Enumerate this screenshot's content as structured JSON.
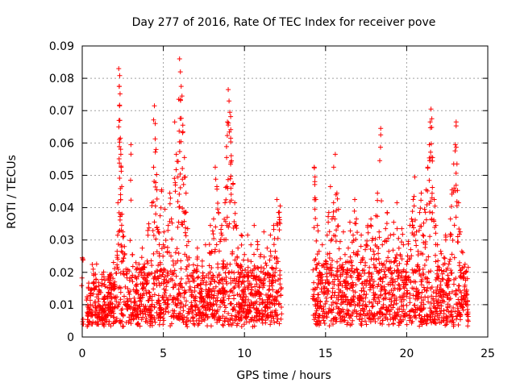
{
  "chart_data": {
    "type": "scatter",
    "title": "Day 277 of 2016, Rate Of TEC Index for receiver pove",
    "xlabel": "GPS time / hours",
    "ylabel": "ROTI / TECUs",
    "xlim": [
      0,
      25
    ],
    "ylim": [
      0,
      0.09
    ],
    "x_ticks": [
      0,
      5,
      10,
      15,
      20,
      25
    ],
    "x_tick_labels": [
      "0",
      "5",
      "10",
      "15",
      "20",
      "25"
    ],
    "y_ticks": [
      0,
      0.01,
      0.02,
      0.03,
      0.04,
      0.05,
      0.06,
      0.07,
      0.08,
      0.09
    ],
    "y_tick_labels": [
      "0",
      "0.01",
      "0.02",
      "0.03",
      "0.04",
      "0.05",
      "0.06",
      "0.07",
      "0.08",
      "0.09"
    ],
    "grid": true,
    "marker": "+",
    "marker_color": "#ff0000",
    "series": [
      {
        "name": "ROTI",
        "points": [
          [
            0.0,
            0.0245
          ],
          [
            0.05,
            0.0055
          ],
          [
            0.3,
            0.0125
          ],
          [
            0.4,
            0.009
          ],
          [
            0.5,
            0.0145
          ],
          [
            0.6,
            0.007
          ],
          [
            0.7,
            0.0195
          ],
          [
            0.8,
            0.011
          ],
          [
            0.9,
            0.0075
          ],
          [
            1.0,
            0.0135
          ],
          [
            1.1,
            0.0095
          ],
          [
            1.2,
            0.016
          ],
          [
            1.3,
            0.0085
          ],
          [
            1.4,
            0.0125
          ],
          [
            1.5,
            0.0065
          ],
          [
            1.6,
            0.018
          ],
          [
            1.7,
            0.01
          ],
          [
            1.8,
            0.0145
          ],
          [
            1.9,
            0.008
          ],
          [
            2.0,
            0.017
          ],
          [
            2.1,
            0.011
          ],
          [
            2.15,
            0.0265
          ],
          [
            2.2,
            0.0415
          ],
          [
            2.25,
            0.083
          ],
          [
            2.28,
            0.0775
          ],
          [
            2.3,
            0.0715
          ],
          [
            2.32,
            0.067
          ],
          [
            2.35,
            0.0615
          ],
          [
            2.38,
            0.0565
          ],
          [
            2.4,
            0.0525
          ],
          [
            2.45,
            0.038
          ],
          [
            2.5,
            0.0325
          ],
          [
            2.6,
            0.028
          ],
          [
            2.7,
            0.021
          ],
          [
            2.8,
            0.015
          ],
          [
            2.9,
            0.0095
          ],
          [
            3.0,
            0.0595
          ],
          [
            3.1,
            0.0255
          ],
          [
            3.2,
            0.012
          ],
          [
            3.3,
            0.0185
          ],
          [
            3.4,
            0.0085
          ],
          [
            3.5,
            0.0225
          ],
          [
            3.6,
            0.013
          ],
          [
            3.7,
            0.0275
          ],
          [
            3.8,
            0.0155
          ],
          [
            3.9,
            0.0095
          ],
          [
            4.0,
            0.0235
          ],
          [
            4.1,
            0.035
          ],
          [
            4.2,
            0.0125
          ],
          [
            4.3,
            0.0415
          ],
          [
            4.4,
            0.0525
          ],
          [
            4.45,
            0.0715
          ],
          [
            4.5,
            0.066
          ],
          [
            4.55,
            0.058
          ],
          [
            4.6,
            0.0455
          ],
          [
            4.7,
            0.0325
          ],
          [
            4.8,
            0.0375
          ],
          [
            4.9,
            0.0455
          ],
          [
            5.0,
            0.0285
          ],
          [
            5.1,
            0.0395
          ],
          [
            5.2,
            0.0175
          ],
          [
            5.3,
            0.0345
          ],
          [
            5.4,
            0.0445
          ],
          [
            5.5,
            0.0365
          ],
          [
            5.6,
            0.0235
          ],
          [
            5.7,
            0.0665
          ],
          [
            5.8,
            0.0565
          ],
          [
            5.9,
            0.0495
          ],
          [
            5.95,
            0.0735
          ],
          [
            6.0,
            0.086
          ],
          [
            6.05,
            0.082
          ],
          [
            6.1,
            0.0775
          ],
          [
            6.15,
            0.0745
          ],
          [
            6.2,
            0.0655
          ],
          [
            6.3,
            0.0555
          ],
          [
            6.35,
            0.0495
          ],
          [
            6.4,
            0.0445
          ],
          [
            6.5,
            0.0335
          ],
          [
            6.6,
            0.0245
          ],
          [
            6.7,
            0.0145
          ],
          [
            6.8,
            0.0095
          ],
          [
            6.9,
            0.0205
          ],
          [
            7.0,
            0.0125
          ],
          [
            7.1,
            0.0275
          ],
          [
            7.2,
            0.0085
          ],
          [
            7.3,
            0.0165
          ],
          [
            7.4,
            0.0235
          ],
          [
            7.5,
            0.0115
          ],
          [
            7.6,
            0.0285
          ],
          [
            7.7,
            0.0135
          ],
          [
            7.8,
            0.0195
          ],
          [
            7.9,
            0.0345
          ],
          [
            8.0,
            0.0265
          ],
          [
            8.1,
            0.0365
          ],
          [
            8.2,
            0.0525
          ],
          [
            8.3,
            0.0465
          ],
          [
            8.4,
            0.0385
          ],
          [
            8.5,
            0.0295
          ],
          [
            8.6,
            0.0345
          ],
          [
            8.7,
            0.0235
          ],
          [
            8.8,
            0.0415
          ],
          [
            8.9,
            0.0555
          ],
          [
            8.95,
            0.0665
          ],
          [
            9.0,
            0.0765
          ],
          [
            9.05,
            0.073
          ],
          [
            9.1,
            0.0695
          ],
          [
            9.15,
            0.0615
          ],
          [
            9.2,
            0.0545
          ],
          [
            9.3,
            0.0475
          ],
          [
            9.4,
            0.0415
          ],
          [
            9.5,
            0.0345
          ],
          [
            9.6,
            0.0275
          ],
          [
            9.7,
            0.0215
          ],
          [
            9.8,
            0.0315
          ],
          [
            9.9,
            0.0185
          ],
          [
            10.0,
            0.0255
          ],
          [
            10.1,
            0.0125
          ],
          [
            10.2,
            0.0315
          ],
          [
            10.3,
            0.0165
          ],
          [
            10.4,
            0.0285
          ],
          [
            10.5,
            0.0205
          ],
          [
            10.6,
            0.0345
          ],
          [
            10.7,
            0.0135
          ],
          [
            10.8,
            0.0295
          ],
          [
            10.9,
            0.0185
          ],
          [
            11.0,
            0.0255
          ],
          [
            11.1,
            0.0115
          ],
          [
            11.2,
            0.0325
          ],
          [
            11.3,
            0.0195
          ],
          [
            11.4,
            0.0275
          ],
          [
            11.5,
            0.0145
          ],
          [
            11.6,
            0.0315
          ],
          [
            11.7,
            0.0215
          ],
          [
            11.8,
            0.0345
          ],
          [
            11.9,
            0.0265
          ],
          [
            12.0,
            0.0425
          ],
          [
            12.1,
            0.0385
          ],
          [
            12.2,
            0.0405
          ],
          [
            14.3,
            0.0525
          ],
          [
            14.35,
            0.0495
          ],
          [
            14.4,
            0.0425
          ],
          [
            14.5,
            0.0345
          ],
          [
            14.6,
            0.0265
          ],
          [
            14.7,
            0.0195
          ],
          [
            14.8,
            0.0285
          ],
          [
            14.9,
            0.0155
          ],
          [
            15.0,
            0.0235
          ],
          [
            15.1,
            0.0315
          ],
          [
            15.2,
            0.0385
          ],
          [
            15.3,
            0.0465
          ],
          [
            15.4,
            0.0365
          ],
          [
            15.5,
            0.0525
          ],
          [
            15.6,
            0.0565
          ],
          [
            15.7,
            0.0445
          ],
          [
            15.8,
            0.0395
          ],
          [
            15.9,
            0.0295
          ],
          [
            16.0,
            0.0215
          ],
          [
            16.1,
            0.0325
          ],
          [
            16.2,
            0.0255
          ],
          [
            16.3,
            0.0185
          ],
          [
            16.4,
            0.0275
          ],
          [
            16.5,
            0.0355
          ],
          [
            16.6,
            0.0235
          ],
          [
            16.7,
            0.0315
          ],
          [
            16.8,
            0.0425
          ],
          [
            16.9,
            0.0365
          ],
          [
            17.0,
            0.0265
          ],
          [
            17.1,
            0.0195
          ],
          [
            17.2,
            0.0315
          ],
          [
            17.3,
            0.0245
          ],
          [
            17.4,
            0.0165
          ],
          [
            17.5,
            0.0285
          ],
          [
            17.6,
            0.0345
          ],
          [
            17.7,
            0.0215
          ],
          [
            17.8,
            0.0365
          ],
          [
            17.9,
            0.0305
          ],
          [
            18.0,
            0.0255
          ],
          [
            18.1,
            0.0375
          ],
          [
            18.2,
            0.0445
          ],
          [
            18.3,
            0.0325
          ],
          [
            18.4,
            0.0645
          ],
          [
            18.5,
            0.0285
          ],
          [
            18.6,
            0.0225
          ],
          [
            18.7,
            0.0335
          ],
          [
            18.8,
            0.0385
          ],
          [
            18.9,
            0.0265
          ],
          [
            19.0,
            0.0315
          ],
          [
            19.1,
            0.0195
          ],
          [
            19.2,
            0.0355
          ],
          [
            19.3,
            0.0245
          ],
          [
            19.4,
            0.0415
          ],
          [
            19.5,
            0.0305
          ],
          [
            19.6,
            0.0255
          ],
          [
            19.7,
            0.0335
          ],
          [
            19.8,
            0.0285
          ],
          [
            19.9,
            0.0185
          ],
          [
            20.0,
            0.0225
          ],
          [
            20.1,
            0.0295
          ],
          [
            20.2,
            0.0345
          ],
          [
            20.3,
            0.0365
          ],
          [
            20.4,
            0.0425
          ],
          [
            20.5,
            0.0495
          ],
          [
            20.6,
            0.0325
          ],
          [
            20.7,
            0.0265
          ],
          [
            20.8,
            0.0385
          ],
          [
            20.9,
            0.0445
          ],
          [
            21.0,
            0.0315
          ],
          [
            21.1,
            0.0395
          ],
          [
            21.2,
            0.0455
          ],
          [
            21.3,
            0.0525
          ],
          [
            21.4,
            0.0595
          ],
          [
            21.45,
            0.0665
          ],
          [
            21.5,
            0.0705
          ],
          [
            21.55,
            0.0675
          ],
          [
            21.6,
            0.0555
          ],
          [
            21.7,
            0.0425
          ],
          [
            21.8,
            0.0345
          ],
          [
            21.9,
            0.0285
          ],
          [
            22.0,
            0.0215
          ],
          [
            22.1,
            0.0265
          ],
          [
            22.2,
            0.0195
          ],
          [
            22.3,
            0.0245
          ],
          [
            22.4,
            0.0315
          ],
          [
            22.5,
            0.0175
          ],
          [
            22.6,
            0.0225
          ],
          [
            22.7,
            0.0365
          ],
          [
            22.8,
            0.0455
          ],
          [
            22.9,
            0.0535
          ],
          [
            23.0,
            0.0595
          ],
          [
            23.05,
            0.0665
          ],
          [
            23.1,
            0.0535
          ],
          [
            23.2,
            0.0415
          ],
          [
            23.3,
            0.0325
          ],
          [
            23.4,
            0.0265
          ],
          [
            23.5,
            0.0195
          ],
          [
            23.6,
            0.0225
          ],
          [
            23.7,
            0.0145
          ],
          [
            23.75,
            0.0085
          ]
        ],
        "band_note": "dense band of points between roughly 0.003 and 0.02 across 0.3–12.3 h and 14.2–23.8 h",
        "band_ranges": [
          [
            0.3,
            12.3
          ],
          [
            14.2,
            23.8
          ]
        ],
        "band_level": [
          0.003,
          0.02
        ]
      }
    ]
  }
}
